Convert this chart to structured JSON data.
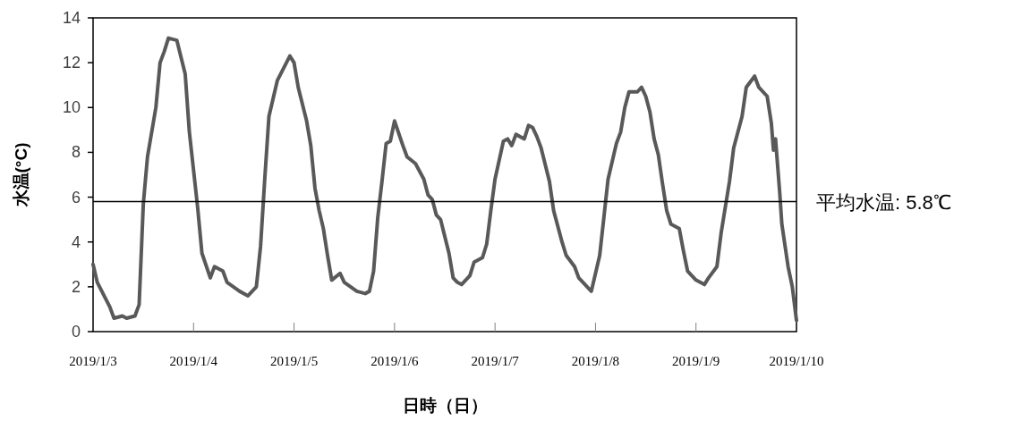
{
  "chart_data": {
    "type": "line",
    "xlabel": "日時（日）",
    "ylabel": "水温(°C)",
    "xlim": [
      "2019-01-03",
      "2019-01-10"
    ],
    "xticks": [
      {
        "value": "2019-01-03",
        "label": "2019/1/3"
      },
      {
        "value": "2019-01-04",
        "label": "2019/1/4"
      },
      {
        "value": "2019-01-05",
        "label": "2019/1/5"
      },
      {
        "value": "2019-01-06",
        "label": "2019/1/6"
      },
      {
        "value": "2019-01-07",
        "label": "2019/1/7"
      },
      {
        "value": "2019-01-08",
        "label": "2019/1/8"
      },
      {
        "value": "2019-01-09",
        "label": "2019/1/9"
      },
      {
        "value": "2019-01-10",
        "label": "2019/1/10"
      }
    ],
    "ylim": [
      0,
      14
    ],
    "yticks": [
      0,
      2,
      4,
      6,
      8,
      10,
      12,
      14
    ],
    "ref_lines": [
      {
        "axis": "y",
        "value": 5.8,
        "label": "平均水温: 5.8℃",
        "color": "#000000"
      }
    ],
    "series": [
      {
        "color": "#595959",
        "x": [
          "2019-01-03T00:00",
          "2019-01-03T01:00",
          "2019-01-03T04:00",
          "2019-01-03T05:00",
          "2019-01-03T07:00",
          "2019-01-03T08:00",
          "2019-01-03T10:00",
          "2019-01-03T11:00",
          "2019-01-03T12:00",
          "2019-01-03T13:00",
          "2019-01-03T15:00",
          "2019-01-03T16:00",
          "2019-01-03T17:00",
          "2019-01-03T18:00",
          "2019-01-03T20:00",
          "2019-01-03T22:00",
          "2019-01-03T23:00",
          "2019-01-04T01:00",
          "2019-01-04T02:00",
          "2019-01-04T04:00",
          "2019-01-04T05:00",
          "2019-01-04T07:00",
          "2019-01-04T08:00",
          "2019-01-04T11:00",
          "2019-01-04T13:00",
          "2019-01-04T15:00",
          "2019-01-04T16:00",
          "2019-01-04T17:00",
          "2019-01-04T18:00",
          "2019-01-04T20:00",
          "2019-01-04T23:00",
          "2019-01-05T00:00",
          "2019-01-05T01:00",
          "2019-01-05T03:00",
          "2019-01-05T04:00",
          "2019-01-05T05:00",
          "2019-01-05T06:00",
          "2019-01-05T07:00",
          "2019-01-05T08:00",
          "2019-01-05T09:00",
          "2019-01-05T11:00",
          "2019-01-05T12:00",
          "2019-01-05T15:00",
          "2019-01-05T17:00",
          "2019-01-05T18:00",
          "2019-01-05T19:00",
          "2019-01-05T20:00",
          "2019-01-05T21:00",
          "2019-01-05T22:00",
          "2019-01-05T23:00",
          "2019-01-06T00:00",
          "2019-01-06T02:00",
          "2019-01-06T03:00",
          "2019-01-06T05:00",
          "2019-01-06T07:00",
          "2019-01-06T08:00",
          "2019-01-06T09:00",
          "2019-01-06T10:00",
          "2019-01-06T11:00",
          "2019-01-06T13:00",
          "2019-01-06T14:00",
          "2019-01-06T15:00",
          "2019-01-06T16:00",
          "2019-01-06T18:00",
          "2019-01-06T19:00",
          "2019-01-06T21:00",
          "2019-01-06T22:00",
          "2019-01-06T23:00",
          "2019-01-07T00:00",
          "2019-01-07T02:00",
          "2019-01-07T03:00",
          "2019-01-07T04:00",
          "2019-01-07T05:00",
          "2019-01-07T07:00",
          "2019-01-07T08:00",
          "2019-01-07T09:00",
          "2019-01-07T10:00",
          "2019-01-07T11:00",
          "2019-01-07T13:00",
          "2019-01-07T14:00",
          "2019-01-07T16:00",
          "2019-01-07T17:00",
          "2019-01-07T19:00",
          "2019-01-07T20:00",
          "2019-01-07T23:00",
          "2019-01-08T01:00",
          "2019-01-08T02:00",
          "2019-01-08T03:00",
          "2019-01-08T05:00",
          "2019-01-08T06:00",
          "2019-01-08T07:00",
          "2019-01-08T08:00",
          "2019-01-08T10:00",
          "2019-01-08T11:00",
          "2019-01-08T12:00",
          "2019-01-08T13:00",
          "2019-01-08T14:00",
          "2019-01-08T15:00",
          "2019-01-08T16:00",
          "2019-01-08T17:00",
          "2019-01-08T18:00",
          "2019-01-08T20:00",
          "2019-01-08T21:00",
          "2019-01-08T22:00",
          "2019-01-09T00:00",
          "2019-01-09T01:00",
          "2019-01-09T02:00",
          "2019-01-09T03:00",
          "2019-01-09T05:00",
          "2019-01-09T06:00",
          "2019-01-09T08:00",
          "2019-01-09T09:00",
          "2019-01-09T11:00",
          "2019-01-09T12:00",
          "2019-01-09T14:00",
          "2019-01-09T15:00",
          "2019-01-09T17:00",
          "2019-01-09T18:00",
          "2019-01-09T18:30",
          "2019-01-09T19:00",
          "2019-01-09T20:00",
          "2019-01-09T20:30",
          "2019-01-09T22:00",
          "2019-01-09T23:00",
          "2019-01-10T00:00"
        ],
        "values": [
          3.0,
          2.2,
          1.1,
          0.6,
          0.7,
          0.6,
          0.7,
          1.2,
          5.7,
          7.8,
          10.0,
          12.0,
          12.5,
          13.1,
          13.0,
          11.5,
          8.9,
          5.5,
          3.5,
          2.4,
          2.9,
          2.7,
          2.2,
          1.8,
          1.6,
          2.0,
          3.8,
          6.8,
          9.6,
          11.2,
          12.3,
          12.0,
          10.9,
          9.4,
          8.3,
          6.4,
          5.4,
          4.6,
          3.4,
          2.3,
          2.6,
          2.2,
          1.8,
          1.7,
          1.8,
          2.7,
          5.1,
          6.7,
          8.4,
          8.5,
          9.4,
          8.3,
          7.8,
          7.5,
          6.8,
          6.1,
          5.9,
          5.2,
          5.0,
          3.5,
          2.4,
          2.2,
          2.1,
          2.5,
          3.1,
          3.3,
          3.9,
          5.4,
          6.8,
          8.5,
          8.6,
          8.3,
          8.8,
          8.6,
          9.2,
          9.1,
          8.7,
          8.2,
          6.7,
          5.4,
          4.0,
          3.4,
          2.9,
          2.4,
          1.8,
          3.4,
          5.1,
          6.8,
          8.4,
          8.9,
          10.0,
          10.7,
          10.7,
          10.9,
          10.5,
          9.8,
          8.6,
          7.9,
          6.6,
          5.4,
          4.8,
          4.6,
          3.6,
          2.7,
          2.3,
          2.2,
          2.1,
          2.4,
          2.9,
          4.4,
          6.7,
          8.2,
          9.6,
          10.9,
          11.4,
          10.9,
          10.5,
          9.3,
          8.1,
          8.6,
          6.2,
          4.8,
          2.9,
          2.0,
          0.5
        ]
      }
    ]
  }
}
